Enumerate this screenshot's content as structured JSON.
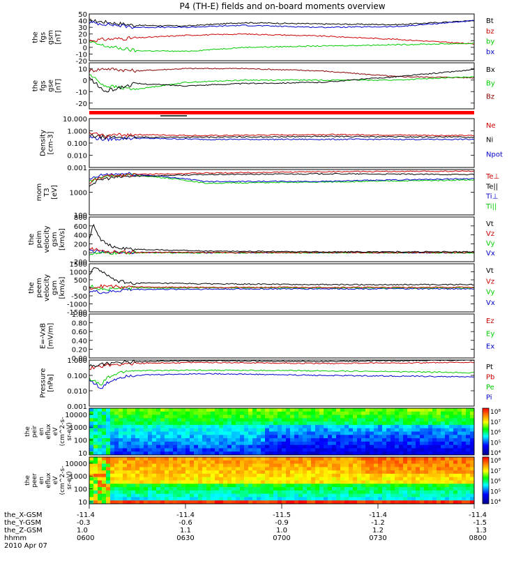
{
  "title": "P4 (TH-E) fields and on-board moments overview",
  "chart_data": {
    "type": "line",
    "title": "P4 (TH-E) fields and on-board moments overview",
    "x_range": [
      "0600",
      "0800"
    ],
    "panels": [
      {
        "id": "fgs-gsm",
        "ylabel": [
          "the",
          "fgs",
          "gsm",
          "[nT]"
        ],
        "scale": "linear",
        "ylim": [
          -20,
          50
        ],
        "yticks": [
          "50",
          "40",
          "30",
          "20",
          "10",
          "0",
          "-10",
          "-20"
        ],
        "legend": [
          {
            "label": "Bt",
            "color": "#000000"
          },
          {
            "label": "bz",
            "color": "#cc0000"
          },
          {
            "label": "by",
            "color": "#00cc00"
          },
          {
            "label": "bx",
            "color": "#0000cc"
          }
        ],
        "series": [
          {
            "label": "Bt",
            "color": "#000000",
            "x": [
              0,
              0.04,
              0.12,
              0.25,
              0.4,
              0.6,
              0.8,
              1.0
            ],
            "y": [
              40,
              38,
              33,
              32,
              37,
              35,
              34,
              40
            ]
          },
          {
            "label": "bx",
            "color": "#0000cc",
            "x": [
              0,
              0.04,
              0.12,
              0.25,
              0.4,
              0.6,
              0.8,
              1.0
            ],
            "y": [
              37,
              35,
              30,
              30,
              33,
              30,
              31,
              40
            ]
          },
          {
            "label": "bz",
            "color": "#cc0000",
            "x": [
              0,
              0.04,
              0.12,
              0.25,
              0.4,
              0.6,
              0.8,
              1.0
            ],
            "y": [
              10,
              12,
              14,
              18,
              20,
              17,
              12,
              5
            ]
          },
          {
            "label": "by",
            "color": "#00cc00",
            "x": [
              0,
              0.04,
              0.12,
              0.25,
              0.4,
              0.6,
              0.8,
              1.0
            ],
            "y": [
              8,
              2,
              -5,
              -6,
              0,
              2,
              4,
              6
            ]
          }
        ]
      },
      {
        "id": "fgs-gse",
        "ylabel": [
          "the",
          "fgs",
          "gse",
          "[nT]"
        ],
        "scale": "linear",
        "ylim": [
          -25,
          15
        ],
        "yticks": [
          "10",
          "0",
          "-10",
          "-20"
        ],
        "legend": [
          {
            "label": "Bx",
            "color": "#000000"
          },
          {
            "label": "By",
            "color": "#00cc00"
          },
          {
            "label": "Bz",
            "color": "#880000"
          }
        ],
        "series": [
          {
            "label": "Bz",
            "color": "#880000",
            "x": [
              0,
              0.04,
              0.12,
              0.25,
              0.4,
              0.6,
              0.8,
              1.0
            ],
            "y": [
              8,
              10,
              8,
              10,
              10,
              8,
              3,
              2
            ]
          },
          {
            "label": "By",
            "color": "#00cc00",
            "x": [
              0,
              0.04,
              0.12,
              0.25,
              0.4,
              0.6,
              0.8,
              1.0
            ],
            "y": [
              5,
              -5,
              -8,
              -2,
              0,
              0,
              0,
              3
            ]
          },
          {
            "label": "Bx",
            "color": "#000000",
            "x": [
              0,
              0.04,
              0.12,
              0.25,
              0.4,
              0.6,
              0.8,
              1.0
            ],
            "y": [
              2,
              -10,
              -3,
              -5,
              -3,
              -2,
              3,
              9
            ]
          }
        ]
      },
      {
        "id": "density",
        "ylabel": [
          "Density",
          "[cm-3]"
        ],
        "scale": "log",
        "ylim": [
          0.001,
          10
        ],
        "yticks": [
          "10.000",
          "1.000",
          "0.100",
          "0.010",
          "0.001"
        ],
        "legend": [
          {
            "label": "Ne",
            "color": "#cc0000"
          },
          {
            "label": "Ni",
            "color": "#000000"
          },
          {
            "label": "Npot",
            "color": "#0000cc"
          }
        ],
        "series": [
          {
            "label": "Npot",
            "color": "#0000cc",
            "x": [
              0,
              0.04,
              0.1,
              0.3,
              0.6,
              1.0
            ],
            "y": [
              0.3,
              0.2,
              0.25,
              0.2,
              0.2,
              0.2
            ]
          },
          {
            "label": "Ni",
            "color": "#000000",
            "x": [
              0,
              0.04,
              0.1,
              0.3,
              0.6,
              1.0
            ],
            "y": [
              0.4,
              0.3,
              0.3,
              0.3,
              0.35,
              0.3
            ]
          },
          {
            "label": "Ne",
            "color": "#cc0000",
            "x": [
              0,
              0.04,
              0.1,
              0.3,
              0.6,
              1.0
            ],
            "y": [
              0.6,
              0.4,
              0.5,
              0.4,
              0.5,
              0.4
            ]
          }
        ]
      },
      {
        "id": "temperature",
        "ylabel": [
          "mom",
          "T3",
          "[eV]"
        ],
        "scale": "log",
        "ylim": [
          100,
          10000
        ],
        "yticks": [
          "1000",
          "100"
        ],
        "legend": [
          {
            "label": "Te⊥",
            "color": "#cc0000"
          },
          {
            "label": "Te||",
            "color": "#000000"
          },
          {
            "label": "Ti⊥",
            "color": "#0000cc"
          },
          {
            "label": "Ti||",
            "color": "#00cc00"
          }
        ],
        "series": [
          {
            "label": "Ti||",
            "color": "#00cc00",
            "x": [
              0,
              0.04,
              0.1,
              0.3,
              0.6,
              1.0
            ],
            "y": [
              3000,
              5000,
              6000,
              2500,
              2800,
              3500
            ]
          },
          {
            "label": "Ti⊥",
            "color": "#0000cc",
            "x": [
              0,
              0.04,
              0.1,
              0.3,
              0.6,
              1.0
            ],
            "y": [
              3500,
              6000,
              6500,
              3000,
              3000,
              4000
            ]
          },
          {
            "label": "Te||",
            "color": "#000000",
            "x": [
              0,
              0.04,
              0.1,
              0.3,
              0.6,
              1.0
            ],
            "y": [
              2000,
              4000,
              5000,
              6000,
              6500,
              6000
            ]
          },
          {
            "label": "Te⊥",
            "color": "#cc0000",
            "x": [
              0,
              0.04,
              0.1,
              0.3,
              0.6,
              1.0
            ],
            "y": [
              2500,
              5000,
              6000,
              7000,
              8000,
              8500
            ]
          }
        ]
      },
      {
        "id": "peim-velocity",
        "ylabel": [
          "the",
          "peim",
          "velocity",
          "gsm",
          "[km/s]"
        ],
        "scale": "linear",
        "ylim": [
          -200,
          800
        ],
        "yticks": [
          "800",
          "600",
          "400",
          "200",
          "0",
          "-200"
        ],
        "legend": [
          {
            "label": "Vt",
            "color": "#000000"
          },
          {
            "label": "Vz",
            "color": "#cc0000"
          },
          {
            "label": "Vy",
            "color": "#00cc00"
          },
          {
            "label": "Vx",
            "color": "#0000cc"
          }
        ],
        "series": [
          {
            "label": "Vx",
            "color": "#0000cc",
            "x": [
              0,
              0.04,
              0.1,
              0.3,
              0.6,
              1.0
            ],
            "y": [
              50,
              0,
              10,
              0,
              0,
              0
            ]
          },
          {
            "label": "Vy",
            "color": "#00cc00",
            "x": [
              0,
              0.04,
              0.1,
              0.3,
              0.6,
              1.0
            ],
            "y": [
              -30,
              -10,
              0,
              0,
              0,
              0
            ]
          },
          {
            "label": "Vz",
            "color": "#cc0000",
            "x": [
              0,
              0.04,
              0.1,
              0.3,
              0.6,
              1.0
            ],
            "y": [
              100,
              30,
              10,
              5,
              5,
              5
            ]
          },
          {
            "label": "Vt",
            "color": "#000000",
            "x": [
              0,
              0.01,
              0.03,
              0.06,
              0.1,
              0.3,
              0.6,
              1.0
            ],
            "y": [
              300,
              650,
              300,
              120,
              80,
              40,
              20,
              20
            ]
          }
        ]
      },
      {
        "id": "peem-velocity",
        "ylabel": [
          "the",
          "peem",
          "velocity",
          "gsm",
          "[km/s]"
        ],
        "scale": "linear",
        "ylim": [
          -1500,
          1500
        ],
        "yticks": [
          "1500",
          "1000",
          "500",
          "0",
          "-500",
          "-1000",
          "-1500"
        ],
        "legend": [
          {
            "label": "Vt",
            "color": "#000000"
          },
          {
            "label": "Vz",
            "color": "#cc0000"
          },
          {
            "label": "Vy",
            "color": "#00cc00"
          },
          {
            "label": "Vx",
            "color": "#0000cc"
          }
        ],
        "series": [
          {
            "label": "Vx",
            "color": "#0000cc",
            "x": [
              0,
              0.04,
              0.1,
              0.3,
              0.6,
              1.0
            ],
            "y": [
              -200,
              -300,
              -100,
              -80,
              -60,
              -60
            ]
          },
          {
            "label": "Vy",
            "color": "#00cc00",
            "x": [
              0,
              0.04,
              0.1,
              0.3,
              0.6,
              1.0
            ],
            "y": [
              100,
              -100,
              0,
              0,
              0,
              0
            ]
          },
          {
            "label": "Vt",
            "color": "#000000",
            "x": [
              0,
              0.01,
              0.03,
              0.06,
              0.1,
              0.3,
              0.6,
              1.0
            ],
            "y": [
              800,
              1200,
              1100,
              500,
              300,
              250,
              200,
              200
            ]
          },
          {
            "label": "Vz",
            "color": "#cc0000",
            "x": [
              0,
              0.04,
              0.1,
              0.3,
              0.6,
              1.0
            ],
            "y": [
              0,
              100,
              50,
              30,
              30,
              30
            ]
          }
        ]
      },
      {
        "id": "efield",
        "ylabel": [
          "E=-VxB",
          "[mV/m]"
        ],
        "scale": "linear",
        "ylim": [
          0,
          1
        ],
        "yticks": [
          "1.00",
          "0.80",
          "0.60",
          "0.40",
          "0.20",
          "0.00"
        ],
        "legend": [
          {
            "label": "Ez",
            "color": "#cc0000"
          },
          {
            "label": "Ey",
            "color": "#00cc00"
          },
          {
            "label": "Ex",
            "color": "#0000cc"
          }
        ],
        "series": []
      },
      {
        "id": "pressure",
        "ylabel": [
          "Pressure",
          "[nPa]"
        ],
        "scale": "log",
        "ylim": [
          0.001,
          1
        ],
        "yticks": [
          "1.000",
          "0.100",
          "0.010",
          "0.001"
        ],
        "legend": [
          {
            "label": "Pt",
            "color": "#000000"
          },
          {
            "label": "Pb",
            "color": "#cc0000"
          },
          {
            "label": "Pe",
            "color": "#00cc00"
          },
          {
            "label": "Pi",
            "color": "#0000cc"
          }
        ],
        "series": [
          {
            "label": "Pi",
            "color": "#0000cc",
            "x": [
              0,
              0.03,
              0.1,
              0.3,
              0.6,
              1.0
            ],
            "y": [
              0.05,
              0.01,
              0.1,
              0.13,
              0.1,
              0.08
            ]
          },
          {
            "label": "Pe",
            "color": "#00cc00",
            "x": [
              0,
              0.03,
              0.1,
              0.3,
              0.6,
              1.0
            ],
            "y": [
              0.06,
              0.02,
              0.2,
              0.22,
              0.2,
              0.15
            ]
          },
          {
            "label": "Pb",
            "color": "#cc0000",
            "x": [
              0,
              0.03,
              0.1,
              0.3,
              0.6,
              1.0
            ],
            "y": [
              0.3,
              0.4,
              0.6,
              0.7,
              0.6,
              0.7
            ]
          },
          {
            "label": "Pt",
            "color": "#000000",
            "x": [
              0,
              0.03,
              0.1,
              0.3,
              0.6,
              1.0
            ],
            "y": [
              0.4,
              0.5,
              0.8,
              0.9,
              0.8,
              1.0
            ]
          }
        ]
      }
    ],
    "spectrograms": [
      {
        "id": "peir-eflux",
        "type": "heatmap",
        "ylabel": [
          "the",
          "peir",
          "en",
          "eflux",
          "eV",
          "(cm^2-s-",
          "sr-eV)"
        ],
        "yticks": [
          "10000",
          "1000",
          "100",
          "10"
        ],
        "colorbar_ticks": [
          "10^8",
          "10^7",
          "10^6",
          "10^5",
          "10^4"
        ]
      },
      {
        "id": "peer-eflux",
        "type": "heatmap",
        "ylabel": [
          "the",
          "peer",
          "en",
          "eflux",
          "eV",
          "(cm^2-s-",
          "sr-eV)"
        ],
        "yticks": [
          "10000",
          "1000",
          "100",
          "10"
        ],
        "colorbar_ticks": [
          "10^8",
          "10^7",
          "10^6",
          "10^5",
          "10^4"
        ]
      }
    ],
    "x_axis": {
      "row_labels": [
        "the_X-GSM",
        "the_Y-GSM",
        "the_Z-GSM",
        "hhmm",
        "2010 Apr 07"
      ],
      "ticks": [
        {
          "values": [
            "-11.4",
            "-0.3",
            "1.0",
            "0600"
          ]
        },
        {
          "values": [
            "-11.4",
            "-0.6",
            "1.1",
            "0630"
          ]
        },
        {
          "values": [
            "-11.5",
            "-0.9",
            "1.0",
            "0700"
          ]
        },
        {
          "values": [
            "-11.4",
            "-1.2",
            "1.2",
            "0730"
          ]
        },
        {
          "values": [
            "-11.4",
            "-1.5",
            "1.3",
            "0800"
          ]
        }
      ]
    }
  }
}
